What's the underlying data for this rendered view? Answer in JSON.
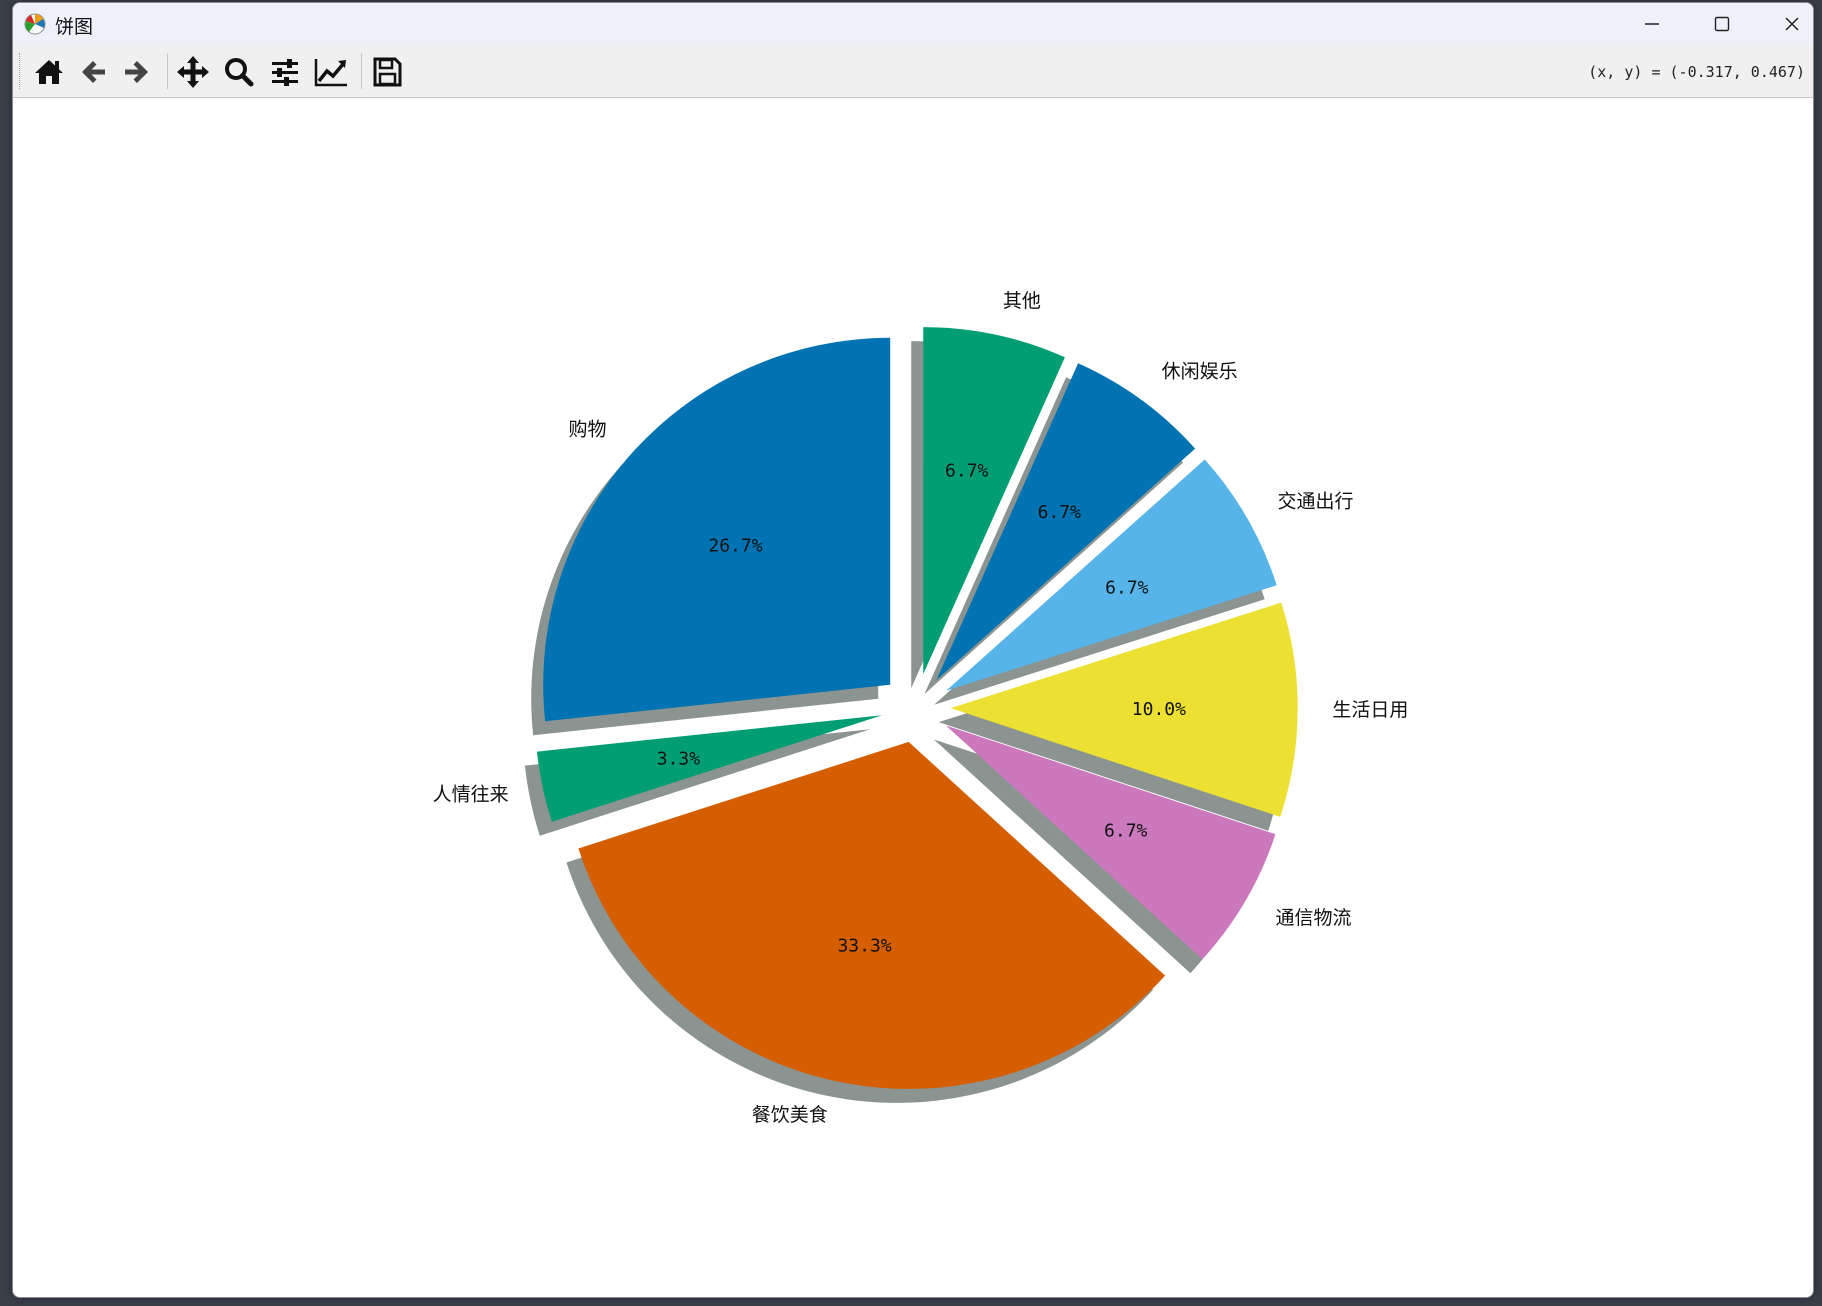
{
  "window": {
    "title": "饼图",
    "icons": {
      "app": "matplotlib-icon",
      "minimize": "minimize-icon",
      "maximize": "maximize-icon",
      "close": "close-icon"
    }
  },
  "toolbar": {
    "buttons": [
      {
        "name": "home-button",
        "icon": "home-icon"
      },
      {
        "name": "back-button",
        "icon": "arrow-left-icon"
      },
      {
        "name": "forward-button",
        "icon": "arrow-right-icon"
      },
      {
        "name": "pan-button",
        "icon": "move-icon"
      },
      {
        "name": "zoom-button",
        "icon": "magnifier-icon"
      },
      {
        "name": "configure-subplots-button",
        "icon": "sliders-icon"
      },
      {
        "name": "edit-axis-button",
        "icon": "line-chart-icon"
      },
      {
        "name": "save-button",
        "icon": "floppy-icon"
      }
    ],
    "coordinates": "(x, y) = (-0.317, 0.467)"
  },
  "chart_data": {
    "type": "pie",
    "start_angle_deg": 90,
    "direction": "clockwise",
    "shadow": true,
    "slices": [
      {
        "label": "其他",
        "value": 6.7,
        "pct_label": "6.7%",
        "color": "#029e73",
        "explode": 0.1
      },
      {
        "label": "休闲娱乐",
        "value": 6.7,
        "pct_label": "6.7%",
        "color": "#0173b2",
        "explode": 0.1
      },
      {
        "label": "交通出行",
        "value": 6.7,
        "pct_label": "6.7%",
        "color": "#56b4e9",
        "explode": 0.1
      },
      {
        "label": "生活日用",
        "value": 10.0,
        "pct_label": "10.0%",
        "color": "#ece133",
        "explode": 0.1
      },
      {
        "label": "通信物流",
        "value": 6.7,
        "pct_label": "6.7%",
        "color": "#cc78bc",
        "explode": 0.1
      },
      {
        "label": "餐饮美食",
        "value": 33.3,
        "pct_label": "33.3%",
        "color": "#d55e00",
        "explode": 0.1
      },
      {
        "label": "人情往来",
        "value": 3.3,
        "pct_label": "3.3%",
        "color": "#029e73",
        "explode": 0.1
      },
      {
        "label": "购物",
        "value": 26.7,
        "pct_label": "26.7%",
        "color": "#0173b2",
        "explode": 0.1
      }
    ]
  }
}
